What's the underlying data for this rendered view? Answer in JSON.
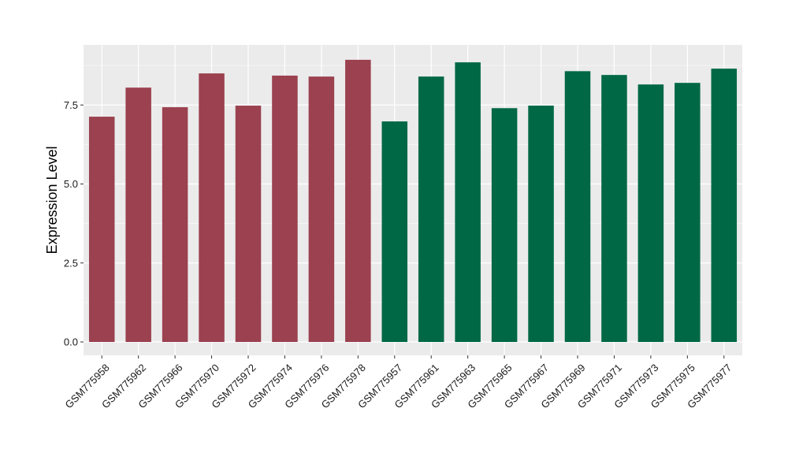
{
  "chart_data": {
    "type": "bar",
    "title": "",
    "xlabel": "",
    "ylabel": "Expression Level",
    "ylim": [
      0,
      9.0
    ],
    "yticks": [
      0.0,
      2.5,
      5.0,
      7.5
    ],
    "ytick_labels": [
      "0.0",
      "2.5",
      "5.0",
      "7.5"
    ],
    "grid": true,
    "panel_background": "#ebebeb",
    "grid_color": "#ffffff",
    "categories": [
      "GSM775958",
      "GSM775962",
      "GSM775966",
      "GSM775970",
      "GSM775972",
      "GSM775974",
      "GSM775976",
      "GSM775978",
      "GSM775957",
      "GSM775961",
      "GSM775963",
      "GSM775965",
      "GSM775967",
      "GSM775969",
      "GSM775971",
      "GSM775973",
      "GSM775975",
      "GSM775977"
    ],
    "values": [
      7.13,
      8.05,
      7.43,
      8.5,
      7.48,
      8.43,
      8.4,
      8.93,
      6.98,
      8.4,
      8.85,
      7.4,
      7.48,
      8.57,
      8.45,
      8.15,
      8.2,
      8.65
    ],
    "bar_colors": [
      "#9b4150",
      "#9b4150",
      "#9b4150",
      "#9b4150",
      "#9b4150",
      "#9b4150",
      "#9b4150",
      "#9b4150",
      "#006845",
      "#006845",
      "#006845",
      "#006845",
      "#006845",
      "#006845",
      "#006845",
      "#006845",
      "#006845",
      "#006845"
    ]
  }
}
